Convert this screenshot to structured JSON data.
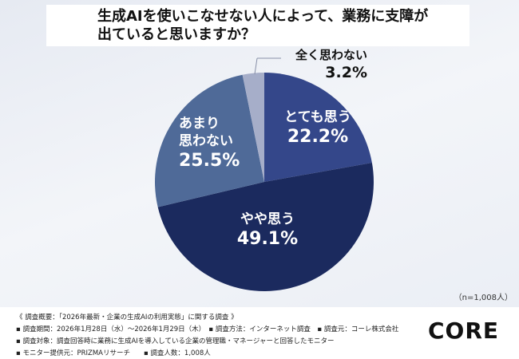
{
  "title_line1": "生成AIを使いこなせない人によって、業務に支障が",
  "title_line2": "出ていると思いますか？",
  "chart_data": {
    "type": "pie",
    "title": "生成AIを使いこなせない人によって、業務に支障が出ていると思いますか？",
    "start": "12 o'clock, clockwise",
    "slices": [
      {
        "label": "とても思う",
        "value": 22.2,
        "display": "22.2%",
        "color": "#34478a"
      },
      {
        "label": "やや思う",
        "value": 49.1,
        "display": "49.1%",
        "color": "#1b2a5e"
      },
      {
        "label_line1": "あまり",
        "label_line2": "思わない",
        "label": "あまり思わない",
        "value": 25.5,
        "display": "25.5%",
        "color": "#4f6a98"
      },
      {
        "label": "全く思わない",
        "value": 3.2,
        "display": "3.2%",
        "color": "#a6aec9"
      }
    ]
  },
  "sample": "（n=1,008人）",
  "footer": {
    "line1": "《 調査概要：「2026年最新・企業の生成AIの利用実態」に関する調査 》",
    "line2": "▪ 調査期間：2026年1月28日（水）～2026年1月29日（木）　▪ 調査方法：インターネット調査　▪ 調査元：コーレ株式会社",
    "line3": "▪ 調査対象：調査回答時に業務に生成AIを導入している企業の管理職・マネージャーと回答したモニター",
    "line4": "▪ モニター提供元：PRIZMAリサーチ　　▪ 調査人数：1,008人"
  },
  "logo": "CORE"
}
